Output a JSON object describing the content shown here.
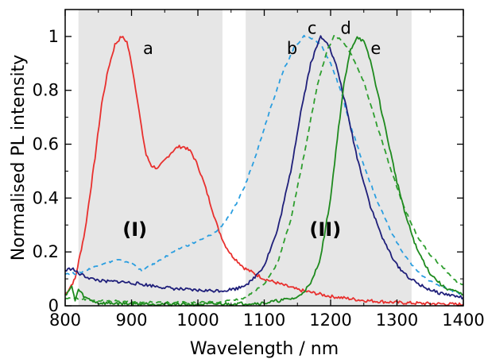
{
  "chart_data": {
    "type": "line",
    "xlabel": "Wavelength / nm",
    "ylabel": "Normalised PL intensity",
    "xlim": [
      800,
      1400
    ],
    "ylim": [
      0,
      1.1
    ],
    "grid": false,
    "x_ticks": [
      800,
      900,
      1000,
      1100,
      1200,
      1300,
      1400
    ],
    "y_ticks": [
      0,
      0.2,
      0.4,
      0.6,
      0.8,
      1
    ],
    "y_tick_labels": [
      "0",
      "0.2",
      "0.4",
      "0.6",
      "0.8",
      "1"
    ],
    "regions": [
      {
        "label": "(I)",
        "x_start": 820,
        "x_end": 1037,
        "label_x": 905,
        "label_y": 0.26,
        "color": "#e6e6e6"
      },
      {
        "label": "(II)",
        "x_start": 1072,
        "x_end": 1322,
        "label_x": 1192,
        "label_y": 0.26,
        "color": "#e6e6e6"
      }
    ],
    "series": [
      {
        "name": "a",
        "label_x": 925,
        "label_y": 0.935,
        "color": "#e8302e",
        "dash": "solid",
        "points": [
          [
            800,
            0.04
          ],
          [
            815,
            0.1
          ],
          [
            830,
            0.28
          ],
          [
            845,
            0.55
          ],
          [
            855,
            0.75
          ],
          [
            865,
            0.88
          ],
          [
            875,
            0.97
          ],
          [
            885,
            1.0
          ],
          [
            893,
            0.98
          ],
          [
            900,
            0.9
          ],
          [
            908,
            0.78
          ],
          [
            915,
            0.66
          ],
          [
            922,
            0.56
          ],
          [
            930,
            0.52
          ],
          [
            940,
            0.51
          ],
          [
            950,
            0.54
          ],
          [
            960,
            0.57
          ],
          [
            970,
            0.59
          ],
          [
            980,
            0.59
          ],
          [
            990,
            0.57
          ],
          [
            1000,
            0.52
          ],
          [
            1010,
            0.45
          ],
          [
            1020,
            0.37
          ],
          [
            1030,
            0.29
          ],
          [
            1040,
            0.23
          ],
          [
            1050,
            0.19
          ],
          [
            1070,
            0.14
          ],
          [
            1100,
            0.1
          ],
          [
            1150,
            0.06
          ],
          [
            1200,
            0.035
          ],
          [
            1250,
            0.02
          ],
          [
            1300,
            0.012
          ],
          [
            1350,
            0.008
          ],
          [
            1400,
            0.005
          ]
        ]
      },
      {
        "name": "b",
        "label_x": 1142,
        "label_y": 0.935,
        "color": "#2a9ee0",
        "dash": "6,5",
        "points": [
          [
            800,
            0.12
          ],
          [
            820,
            0.12
          ],
          [
            840,
            0.14
          ],
          [
            860,
            0.16
          ],
          [
            880,
            0.17
          ],
          [
            900,
            0.16
          ],
          [
            915,
            0.13
          ],
          [
            930,
            0.15
          ],
          [
            950,
            0.18
          ],
          [
            970,
            0.21
          ],
          [
            990,
            0.23
          ],
          [
            1010,
            0.25
          ],
          [
            1030,
            0.28
          ],
          [
            1050,
            0.34
          ],
          [
            1070,
            0.44
          ],
          [
            1090,
            0.58
          ],
          [
            1110,
            0.74
          ],
          [
            1130,
            0.88
          ],
          [
            1145,
            0.96
          ],
          [
            1160,
            1.0
          ],
          [
            1175,
            0.99
          ],
          [
            1185,
            0.97
          ],
          [
            1200,
            0.9
          ],
          [
            1215,
            0.8
          ],
          [
            1230,
            0.67
          ],
          [
            1250,
            0.52
          ],
          [
            1270,
            0.39
          ],
          [
            1290,
            0.28
          ],
          [
            1310,
            0.19
          ],
          [
            1330,
            0.13
          ],
          [
            1350,
            0.09
          ],
          [
            1370,
            0.07
          ],
          [
            1390,
            0.05
          ],
          [
            1400,
            0.04
          ]
        ]
      },
      {
        "name": "c",
        "label_x": 1172,
        "label_y": 1.01,
        "color": "#1f1f7a",
        "dash": "solid",
        "points": [
          [
            800,
            0.13
          ],
          [
            810,
            0.14
          ],
          [
            820,
            0.12
          ],
          [
            840,
            0.1
          ],
          [
            860,
            0.09
          ],
          [
            880,
            0.09
          ],
          [
            900,
            0.085
          ],
          [
            930,
            0.075
          ],
          [
            960,
            0.065
          ],
          [
            990,
            0.058
          ],
          [
            1020,
            0.056
          ],
          [
            1040,
            0.057
          ],
          [
            1060,
            0.065
          ],
          [
            1080,
            0.09
          ],
          [
            1100,
            0.15
          ],
          [
            1120,
            0.28
          ],
          [
            1140,
            0.5
          ],
          [
            1155,
            0.72
          ],
          [
            1170,
            0.9
          ],
          [
            1185,
            1.0
          ],
          [
            1195,
            0.98
          ],
          [
            1210,
            0.88
          ],
          [
            1225,
            0.72
          ],
          [
            1240,
            0.55
          ],
          [
            1260,
            0.37
          ],
          [
            1280,
            0.24
          ],
          [
            1300,
            0.15
          ],
          [
            1320,
            0.1
          ],
          [
            1340,
            0.07
          ],
          [
            1360,
            0.05
          ],
          [
            1380,
            0.04
          ],
          [
            1400,
            0.03
          ]
        ]
      },
      {
        "name": "d",
        "label_x": 1223,
        "label_y": 1.01,
        "color": "#2e9e2e",
        "dash": "7,5",
        "points": [
          [
            800,
            0.03
          ],
          [
            850,
            0.02
          ],
          [
            900,
            0.015
          ],
          [
            950,
            0.012
          ],
          [
            1000,
            0.012
          ],
          [
            1040,
            0.015
          ],
          [
            1070,
            0.03
          ],
          [
            1100,
            0.08
          ],
          [
            1120,
            0.16
          ],
          [
            1140,
            0.32
          ],
          [
            1160,
            0.56
          ],
          [
            1180,
            0.82
          ],
          [
            1195,
            0.95
          ],
          [
            1205,
            1.0
          ],
          [
            1215,
            0.99
          ],
          [
            1230,
            0.94
          ],
          [
            1250,
            0.83
          ],
          [
            1270,
            0.67
          ],
          [
            1290,
            0.51
          ],
          [
            1310,
            0.37
          ],
          [
            1330,
            0.26
          ],
          [
            1350,
            0.19
          ],
          [
            1370,
            0.14
          ],
          [
            1390,
            0.09
          ],
          [
            1400,
            0.08
          ]
        ]
      },
      {
        "name": "e",
        "label_x": 1268,
        "label_y": 0.935,
        "color": "#1e8a1e",
        "dash": "solid",
        "points": [
          [
            800,
            0.04
          ],
          [
            810,
            0.07
          ],
          [
            815,
            0.02
          ],
          [
            820,
            0.06
          ],
          [
            830,
            0.03
          ],
          [
            850,
            0.01
          ],
          [
            900,
            0.008
          ],
          [
            1000,
            0.005
          ],
          [
            1100,
            0.01
          ],
          [
            1150,
            0.03
          ],
          [
            1170,
            0.08
          ],
          [
            1185,
            0.18
          ],
          [
            1200,
            0.4
          ],
          [
            1210,
            0.62
          ],
          [
            1220,
            0.82
          ],
          [
            1230,
            0.95
          ],
          [
            1240,
            1.0
          ],
          [
            1250,
            0.98
          ],
          [
            1260,
            0.91
          ],
          [
            1270,
            0.8
          ],
          [
            1285,
            0.63
          ],
          [
            1300,
            0.46
          ],
          [
            1315,
            0.32
          ],
          [
            1330,
            0.21
          ],
          [
            1350,
            0.12
          ],
          [
            1370,
            0.07
          ],
          [
            1390,
            0.05
          ],
          [
            1400,
            0.04
          ]
        ]
      }
    ]
  }
}
